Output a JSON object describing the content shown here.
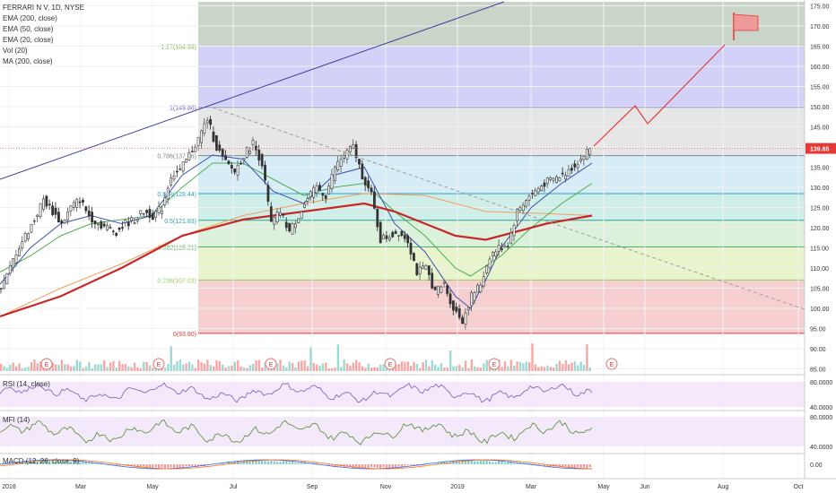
{
  "legend": {
    "symbol": "FERRARI N V, 1D, NYSE",
    "lines": [
      "EMA (200, close)",
      "EMA (50, close)",
      "EMA (20, close)",
      "Vol (20)",
      "MA (200, close)"
    ]
  },
  "panes": {
    "rsi_label": "RSI (14, close)",
    "mfi_label": "MFI (14)",
    "macd_label": "MACD (12, 26, close, 9)"
  },
  "colors": {
    "price_up": "#26a69a",
    "price_down": "#ef5350",
    "ema200": "#f59e5c",
    "ema50": "#4caf50",
    "ema20": "#3f51b5",
    "ma200": "#c62828",
    "trendline": "#3f3f9f",
    "projection": "#e53935",
    "rsi_band": "#efe3f7",
    "rsi_line": "#7e57c2",
    "mfi_band": "#efe3f7",
    "mfi_line": "#558b2f",
    "macd_line": "#2962ff",
    "signal_line": "#ff6d00"
  },
  "chart_data": {
    "type": "line",
    "title": "FERRARI N V, 1D, NYSE",
    "x_ticks": [
      "2018",
      "Mar",
      "May",
      "Jul",
      "Sep",
      "Nov",
      "2019",
      "Mar",
      "May",
      "Jun",
      "Aug",
      "Oct"
    ],
    "y_ticks": [
      85,
      90,
      95,
      100,
      105,
      110,
      115,
      120,
      125,
      130,
      135,
      140,
      145,
      150,
      155,
      160,
      165,
      170,
      175
    ],
    "ylim": [
      84,
      176
    ],
    "current_price": "139.65",
    "fib_levels": [
      {
        "label": "1.27(164.99)",
        "value": 164.99
      },
      {
        "label": "1(149.86)",
        "value": 149.86
      },
      {
        "label": "0.786(137.86)",
        "value": 137.86
      },
      {
        "label": "0.618(128.44)",
        "value": 128.44
      },
      {
        "label": "0.5(121.83)",
        "value": 121.83
      },
      {
        "label": "0.382(115.21)",
        "value": 115.21
      },
      {
        "label": "0.236(107.03)",
        "value": 107.03
      },
      {
        "label": "0(93.80)",
        "value": 93.8
      }
    ],
    "price_series": {
      "name": "close",
      "points": [
        [
          0,
          104
        ],
        [
          3,
          108
        ],
        [
          6,
          114
        ],
        [
          9,
          118
        ],
        [
          12,
          122
        ],
        [
          15,
          127
        ],
        [
          18,
          124
        ],
        [
          21,
          121
        ],
        [
          24,
          125
        ],
        [
          27,
          127
        ],
        [
          30,
          123
        ],
        [
          33,
          121
        ],
        [
          36,
          120
        ],
        [
          39,
          119
        ],
        [
          42,
          121
        ],
        [
          45,
          122
        ],
        [
          48,
          124
        ],
        [
          51,
          123
        ],
        [
          54,
          125
        ],
        [
          57,
          133
        ],
        [
          60,
          134
        ],
        [
          63,
          138
        ],
        [
          66,
          142
        ],
        [
          69,
          147
        ],
        [
          72,
          140
        ],
        [
          75,
          136
        ],
        [
          78,
          134
        ],
        [
          81,
          138
        ],
        [
          84,
          141
        ],
        [
          87,
          136
        ],
        [
          90,
          121
        ],
        [
          93,
          124
        ],
        [
          96,
          119
        ],
        [
          99,
          123
        ],
        [
          102,
          127
        ],
        [
          105,
          130
        ],
        [
          108,
          128
        ],
        [
          111,
          135
        ],
        [
          114,
          138
        ],
        [
          117,
          140
        ],
        [
          120,
          133
        ],
        [
          123,
          128
        ],
        [
          126,
          117
        ],
        [
          129,
          118
        ],
        [
          132,
          119
        ],
        [
          135,
          117
        ],
        [
          138,
          109
        ],
        [
          141,
          110
        ],
        [
          144,
          104
        ],
        [
          147,
          106
        ],
        [
          150,
          100
        ],
        [
          153,
          97
        ],
        [
          156,
          103
        ],
        [
          159,
          106
        ],
        [
          162,
          113
        ],
        [
          165,
          115
        ],
        [
          168,
          116
        ],
        [
          171,
          124
        ],
        [
          174,
          127
        ],
        [
          177,
          129
        ],
        [
          180,
          131
        ],
        [
          183,
          132
        ],
        [
          186,
          133
        ],
        [
          189,
          135
        ],
        [
          192,
          137
        ],
        [
          195,
          139.65
        ]
      ]
    },
    "ema200_series": {
      "points": [
        [
          0,
          98
        ],
        [
          20,
          105
        ],
        [
          40,
          111
        ],
        [
          60,
          118
        ],
        [
          80,
          123
        ],
        [
          100,
          126
        ],
        [
          120,
          128.5
        ],
        [
          140,
          128
        ],
        [
          160,
          124
        ],
        [
          180,
          123.5
        ],
        [
          195,
          123
        ]
      ]
    },
    "ema50_series": {
      "points": [
        [
          0,
          109
        ],
        [
          10,
          113
        ],
        [
          20,
          118
        ],
        [
          30,
          121
        ],
        [
          40,
          122
        ],
        [
          50,
          123
        ],
        [
          60,
          130
        ],
        [
          70,
          136
        ],
        [
          80,
          136
        ],
        [
          90,
          132
        ],
        [
          100,
          128
        ],
        [
          110,
          130
        ],
        [
          120,
          131
        ],
        [
          130,
          124
        ],
        [
          140,
          118
        ],
        [
          150,
          110
        ],
        [
          155,
          108
        ],
        [
          165,
          113
        ],
        [
          175,
          120
        ],
        [
          185,
          126
        ],
        [
          195,
          131
        ]
      ]
    },
    "ema20_series": {
      "points": [
        [
          0,
          106
        ],
        [
          10,
          115
        ],
        [
          20,
          121
        ],
        [
          30,
          123
        ],
        [
          40,
          121
        ],
        [
          50,
          123
        ],
        [
          60,
          133
        ],
        [
          70,
          138
        ],
        [
          80,
          137
        ],
        [
          90,
          129
        ],
        [
          100,
          126
        ],
        [
          110,
          133
        ],
        [
          120,
          135
        ],
        [
          130,
          121
        ],
        [
          140,
          114
        ],
        [
          150,
          103
        ],
        [
          155,
          100
        ],
        [
          160,
          107
        ],
        [
          165,
          115
        ],
        [
          175,
          125
        ],
        [
          185,
          131
        ],
        [
          195,
          136
        ]
      ]
    },
    "ma200_series": {
      "points": [
        [
          0,
          98
        ],
        [
          20,
          103
        ],
        [
          40,
          110
        ],
        [
          60,
          118
        ],
        [
          80,
          122
        ],
        [
          100,
          124
        ],
        [
          120,
          126
        ],
        [
          130,
          124
        ],
        [
          140,
          121
        ],
        [
          150,
          118
        ],
        [
          160,
          117
        ],
        [
          170,
          119
        ],
        [
          180,
          121
        ],
        [
          195,
          123
        ]
      ]
    },
    "earnings_markers": [
      "E",
      "E",
      "E",
      "E",
      "E",
      "E"
    ],
    "rsi_ticks": [
      "80.0000",
      "40.0000"
    ],
    "mfi_ticks": [
      "80.0000",
      "40.0000"
    ],
    "macd_ticks": [
      "0.00"
    ]
  }
}
